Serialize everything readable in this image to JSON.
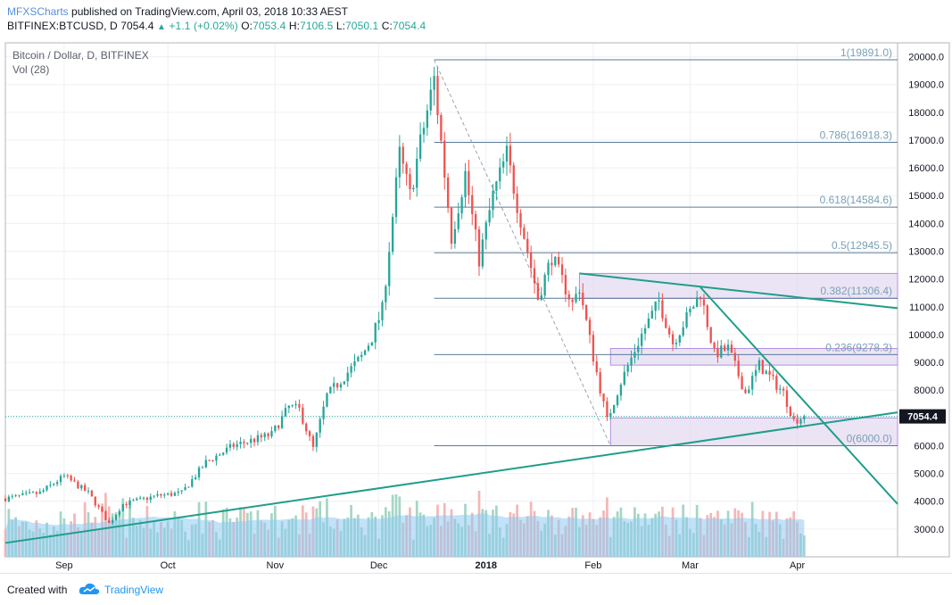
{
  "header": {
    "author": "MFXSCharts",
    "published_text": "published on TradingView.com, April 03, 2018 10:33 AEST",
    "symbol_line": {
      "symbol": "BITFINEX:BTCUSD, D",
      "last": "7054.4",
      "change": "+1.1 (+0.02%)",
      "o_label": "O:",
      "o": "7053.4",
      "h_label": "H:",
      "h": "7106.5",
      "l_label": "L:",
      "l": "7050.1",
      "c_label": "C:",
      "c": "7054.4"
    }
  },
  "legend": {
    "title": "Bitcoin / Dollar, D, BITFINEX",
    "volume": "Vol (28)"
  },
  "footer": {
    "created_with": "Created with",
    "brand": "TradingView"
  },
  "colors": {
    "up": "#26a69a",
    "down": "#ef5350",
    "up_volume": "#a5d6c4",
    "down_volume": "#f4b7b5",
    "volume_ma": "#8ecbf2",
    "fib": "#5b7a99",
    "trendline": "#1f9e89",
    "zone_fill": "#e1d5f0",
    "zone_border": "#b48fe0",
    "price_tag": "#131722"
  },
  "chart_data": {
    "type": "candlestick",
    "symbol": "BITFINEX:BTCUSD",
    "interval": "D",
    "x_range": [
      "2017-08-15",
      "2018-04-30"
    ],
    "ylim": [
      2000,
      20500
    ],
    "y_ticks": [
      3000,
      4000,
      5000,
      6000,
      7000,
      8000,
      9000,
      10000,
      11000,
      12000,
      13000,
      14000,
      15000,
      16000,
      17000,
      18000,
      19000,
      20000
    ],
    "y_tick_labels": [
      "3000.0",
      "4000.0",
      "5000.0",
      "6000.0",
      "7000.0",
      "8000.0",
      "9000.0",
      "10000.0",
      "11000.0",
      "12000.0",
      "13000.0",
      "14000.0",
      "15000.0",
      "16000.0",
      "17000.0",
      "18000.0",
      "19000.0",
      "20000.0"
    ],
    "x_ticks": [
      {
        "date": "2017-09-01",
        "label": "Sep",
        "bold": false
      },
      {
        "date": "2017-10-01",
        "label": "Oct",
        "bold": false
      },
      {
        "date": "2017-11-01",
        "label": "Nov",
        "bold": false
      },
      {
        "date": "2017-12-01",
        "label": "Dec",
        "bold": false
      },
      {
        "date": "2018-01-01",
        "label": "2018",
        "bold": true
      },
      {
        "date": "2018-02-01",
        "label": "Feb",
        "bold": false
      },
      {
        "date": "2018-03-01",
        "label": "Mar",
        "bold": false
      },
      {
        "date": "2018-04-01",
        "label": "Apr",
        "bold": false
      }
    ],
    "last_price": 7054.4,
    "last_price_label": "7054.4",
    "price_keypoints": [
      {
        "date": "2017-08-15",
        "price": 4100
      },
      {
        "date": "2017-08-25",
        "price": 4300
      },
      {
        "date": "2017-09-01",
        "price": 4900
      },
      {
        "date": "2017-09-08",
        "price": 4300
      },
      {
        "date": "2017-09-14",
        "price": 3200
      },
      {
        "date": "2017-09-18",
        "price": 3900
      },
      {
        "date": "2017-09-28",
        "price": 4200
      },
      {
        "date": "2017-10-05",
        "price": 4300
      },
      {
        "date": "2017-10-12",
        "price": 5400
      },
      {
        "date": "2017-10-20",
        "price": 6000
      },
      {
        "date": "2017-10-31",
        "price": 6400
      },
      {
        "date": "2017-11-05",
        "price": 7400
      },
      {
        "date": "2017-11-08",
        "price": 7300
      },
      {
        "date": "2017-11-12",
        "price": 5900
      },
      {
        "date": "2017-11-16",
        "price": 7800
      },
      {
        "date": "2017-11-26",
        "price": 9200
      },
      {
        "date": "2017-11-29",
        "price": 9900
      },
      {
        "date": "2017-12-02",
        "price": 10900
      },
      {
        "date": "2017-12-07",
        "price": 16500
      },
      {
        "date": "2017-12-10",
        "price": 15000
      },
      {
        "date": "2017-12-13",
        "price": 16900
      },
      {
        "date": "2017-12-17",
        "price": 19200
      },
      {
        "date": "2017-12-22",
        "price": 13500
      },
      {
        "date": "2017-12-26",
        "price": 15800
      },
      {
        "date": "2017-12-30",
        "price": 12700
      },
      {
        "date": "2018-01-03",
        "price": 15000
      },
      {
        "date": "2018-01-07",
        "price": 16500
      },
      {
        "date": "2018-01-10",
        "price": 14700
      },
      {
        "date": "2018-01-16",
        "price": 11300
      },
      {
        "date": "2018-01-20",
        "price": 12800
      },
      {
        "date": "2018-01-26",
        "price": 11100
      },
      {
        "date": "2018-01-28",
        "price": 11700
      },
      {
        "date": "2018-02-01",
        "price": 9200
      },
      {
        "date": "2018-02-05",
        "price": 6900
      },
      {
        "date": "2018-02-09",
        "price": 8300
      },
      {
        "date": "2018-02-15",
        "price": 10000
      },
      {
        "date": "2018-02-20",
        "price": 11200
      },
      {
        "date": "2018-02-24",
        "price": 9700
      },
      {
        "date": "2018-03-04",
        "price": 11500
      },
      {
        "date": "2018-03-08",
        "price": 9300
      },
      {
        "date": "2018-03-12",
        "price": 9500
      },
      {
        "date": "2018-03-17",
        "price": 7900
      },
      {
        "date": "2018-03-21",
        "price": 8900
      },
      {
        "date": "2018-03-28",
        "price": 7900
      },
      {
        "date": "2018-03-31",
        "price": 6900
      },
      {
        "date": "2018-04-03",
        "price": 7054.4
      }
    ],
    "fibonacci_retracement": {
      "levels": [
        {
          "ratio": "1",
          "price": 19891.0,
          "label": "1(19891.0)"
        },
        {
          "ratio": "0.786",
          "price": 16918.3,
          "label": "0.786(16918.3)"
        },
        {
          "ratio": "0.618",
          "price": 14584.6,
          "label": "0.618(14584.6)"
        },
        {
          "ratio": "0.5",
          "price": 12945.5,
          "label": "0.5(12945.5)"
        },
        {
          "ratio": "0.382",
          "price": 11306.4,
          "label": "0.382(11306.4)"
        },
        {
          "ratio": "0.236",
          "price": 9278.3,
          "label": "0.236(9278.3)"
        },
        {
          "ratio": "0",
          "price": 6000.0,
          "label": "0(6000.0)"
        }
      ],
      "from": {
        "date": "2017-12-17",
        "price": 19891.0
      },
      "to": {
        "date": "2018-02-06",
        "price": 6000.0
      }
    },
    "zones": [
      {
        "from_date": "2018-01-28",
        "to_date": "2018-04-30",
        "low": 11300,
        "high": 12200
      },
      {
        "from_date": "2018-02-06",
        "to_date": "2018-04-30",
        "low": 8900,
        "high": 9500
      },
      {
        "from_date": "2018-02-06",
        "to_date": "2018-04-30",
        "low": 6000,
        "high": 7000
      }
    ],
    "trendlines": [
      {
        "start": {
          "date": "2017-08-15",
          "price": 2500
        },
        "end": {
          "date": "2018-04-30",
          "price": 7200
        }
      },
      {
        "start": {
          "date": "2018-01-28",
          "price": 12200
        },
        "end": {
          "date": "2018-04-30",
          "price": 10950
        }
      },
      {
        "start": {
          "date": "2018-03-04",
          "price": 11700
        },
        "end": {
          "date": "2018-04-30",
          "price": 3900
        }
      }
    ]
  }
}
